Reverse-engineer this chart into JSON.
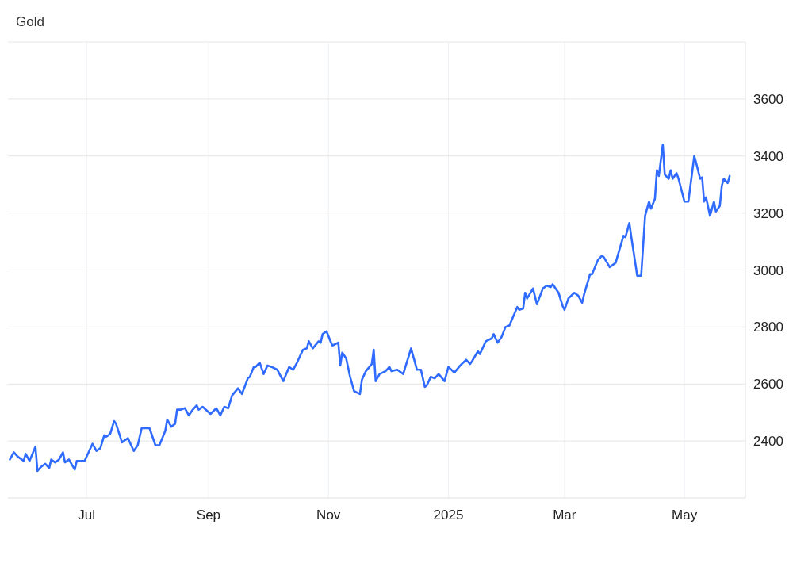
{
  "chart_data": {
    "type": "line",
    "title": "Gold",
    "x": [
      "2024-05-23",
      "2024-05-25",
      "2024-05-27",
      "2024-05-30",
      "2024-05-31",
      "2024-06-02",
      "2024-06-05",
      "2024-06-06",
      "2024-06-08",
      "2024-06-10",
      "2024-06-12",
      "2024-06-13",
      "2024-06-15",
      "2024-06-17",
      "2024-06-19",
      "2024-06-20",
      "2024-06-22",
      "2024-06-25",
      "2024-06-26",
      "2024-06-30",
      "2024-07-02",
      "2024-07-04",
      "2024-07-06",
      "2024-07-08",
      "2024-07-10",
      "2024-07-11",
      "2024-07-13",
      "2024-07-15",
      "2024-07-16",
      "2024-07-19",
      "2024-07-22",
      "2024-07-25",
      "2024-07-27",
      "2024-07-29",
      "2024-08-02",
      "2024-08-05",
      "2024-08-07",
      "2024-08-10",
      "2024-08-11",
      "2024-08-13",
      "2024-08-15",
      "2024-08-16",
      "2024-08-18",
      "2024-08-20",
      "2024-08-22",
      "2024-08-24",
      "2024-08-26",
      "2024-08-27",
      "2024-08-29",
      "2024-09-02",
      "2024-09-05",
      "2024-09-07",
      "2024-09-09",
      "2024-09-11",
      "2024-09-13",
      "2024-09-16",
      "2024-09-18",
      "2024-09-21",
      "2024-09-22",
      "2024-09-24",
      "2024-09-25",
      "2024-09-27",
      "2024-09-29",
      "2024-10-01",
      "2024-10-03",
      "2024-10-06",
      "2024-10-09",
      "2024-10-12",
      "2024-10-14",
      "2024-10-16",
      "2024-10-19",
      "2024-10-21",
      "2024-10-22",
      "2024-10-24",
      "2024-10-27",
      "2024-10-28",
      "2024-10-29",
      "2024-10-31",
      "2024-11-02",
      "2024-11-03",
      "2024-11-06",
      "2024-11-07",
      "2024-11-08",
      "2024-11-10",
      "2024-11-12",
      "2024-11-14",
      "2024-11-17",
      "2024-11-18",
      "2024-11-20",
      "2024-11-23",
      "2024-11-24",
      "2024-11-25",
      "2024-11-27",
      "2024-11-30",
      "2024-12-02",
      "2024-12-03",
      "2024-12-06",
      "2024-12-09",
      "2024-12-13",
      "2024-12-16",
      "2024-12-18",
      "2024-12-20",
      "2024-12-21",
      "2024-12-23",
      "2024-12-25",
      "2024-12-27",
      "2024-12-30",
      "2025-01-01",
      "2025-01-04",
      "2025-01-07",
      "2025-01-10",
      "2025-01-12",
      "2025-01-13",
      "2025-01-16",
      "2025-01-17",
      "2025-01-20",
      "2025-01-23",
      "2025-01-24",
      "2025-01-26",
      "2025-01-28",
      "2025-01-30",
      "2025-02-01",
      "2025-02-05",
      "2025-02-06",
      "2025-02-08",
      "2025-02-09",
      "2025-02-10",
      "2025-02-13",
      "2025-02-15",
      "2025-02-18",
      "2025-02-20",
      "2025-02-22",
      "2025-02-23",
      "2025-02-26",
      "2025-02-28",
      "2025-03-01",
      "2025-03-03",
      "2025-03-06",
      "2025-03-08",
      "2025-03-10",
      "2025-03-11",
      "2025-03-14",
      "2025-03-15",
      "2025-03-18",
      "2025-03-20",
      "2025-03-21",
      "2025-03-24",
      "2025-03-27",
      "2025-03-31",
      "2025-04-01",
      "2025-04-03",
      "2025-04-04",
      "2025-04-07",
      "2025-04-09",
      "2025-04-11",
      "2025-04-13",
      "2025-04-14",
      "2025-04-16",
      "2025-04-17",
      "2025-04-18",
      "2025-04-20",
      "2025-04-21",
      "2025-04-23",
      "2025-04-24",
      "2025-04-25",
      "2025-04-27",
      "2025-04-28",
      "2025-05-01",
      "2025-05-03",
      "2025-05-06",
      "2025-05-07",
      "2025-05-09",
      "2025-05-10",
      "2025-05-11",
      "2025-05-12",
      "2025-05-14",
      "2025-05-16",
      "2025-05-17",
      "2025-05-19",
      "2025-05-20",
      "2025-05-21",
      "2025-05-23",
      "2025-05-24"
    ],
    "series": [
      {
        "color": "#2f6bff",
        "values": [
          2335,
          2360,
          2345,
          2330,
          2355,
          2330,
          2380,
          2295,
          2310,
          2320,
          2305,
          2335,
          2325,
          2335,
          2360,
          2325,
          2335,
          2300,
          2330,
          2330,
          2360,
          2390,
          2365,
          2375,
          2420,
          2415,
          2425,
          2470,
          2460,
          2395,
          2410,
          2365,
          2385,
          2445,
          2445,
          2385,
          2385,
          2435,
          2475,
          2450,
          2460,
          2510,
          2510,
          2515,
          2490,
          2510,
          2525,
          2510,
          2520,
          2495,
          2515,
          2490,
          2520,
          2515,
          2560,
          2585,
          2565,
          2620,
          2625,
          2660,
          2660,
          2675,
          2635,
          2665,
          2660,
          2650,
          2610,
          2660,
          2650,
          2675,
          2720,
          2725,
          2750,
          2725,
          2750,
          2745,
          2775,
          2785,
          2750,
          2735,
          2745,
          2665,
          2710,
          2690,
          2625,
          2575,
          2565,
          2615,
          2645,
          2670,
          2720,
          2610,
          2635,
          2645,
          2660,
          2645,
          2650,
          2635,
          2725,
          2650,
          2650,
          2590,
          2595,
          2625,
          2620,
          2635,
          2610,
          2660,
          2640,
          2665,
          2685,
          2670,
          2680,
          2715,
          2705,
          2750,
          2760,
          2775,
          2745,
          2765,
          2800,
          2805,
          2870,
          2860,
          2865,
          2920,
          2900,
          2935,
          2880,
          2935,
          2945,
          2940,
          2950,
          2920,
          2875,
          2860,
          2900,
          2920,
          2910,
          2885,
          2915,
          2985,
          2985,
          3035,
          3050,
          3045,
          3010,
          3025,
          3120,
          3115,
          3165,
          3115,
          2980,
          2980,
          3190,
          3240,
          3215,
          3250,
          3350,
          3330,
          3440,
          3335,
          3320,
          3350,
          3320,
          3340,
          3320,
          3240,
          3240,
          3400,
          3375,
          3320,
          3325,
          3240,
          3255,
          3190,
          3240,
          3205,
          3225,
          3295,
          3320,
          3305,
          3330
        ]
      }
    ],
    "xlim": [
      "2024-05-22",
      "2025-06-01"
    ],
    "xticks": [
      {
        "value": "2024-07-01",
        "label": "Jul"
      },
      {
        "value": "2024-09-01",
        "label": "Sep"
      },
      {
        "value": "2024-11-01",
        "label": "Nov"
      },
      {
        "value": "2025-01-01",
        "label": "2025"
      },
      {
        "value": "2025-03-01",
        "label": "Mar"
      },
      {
        "value": "2025-05-01",
        "label": "May"
      }
    ],
    "ylim": [
      2200,
      3800
    ],
    "yticks": [
      2400,
      2600,
      2800,
      3000,
      3200,
      3400,
      3600
    ],
    "grid": true,
    "line_style": "solid",
    "marker": "none"
  }
}
